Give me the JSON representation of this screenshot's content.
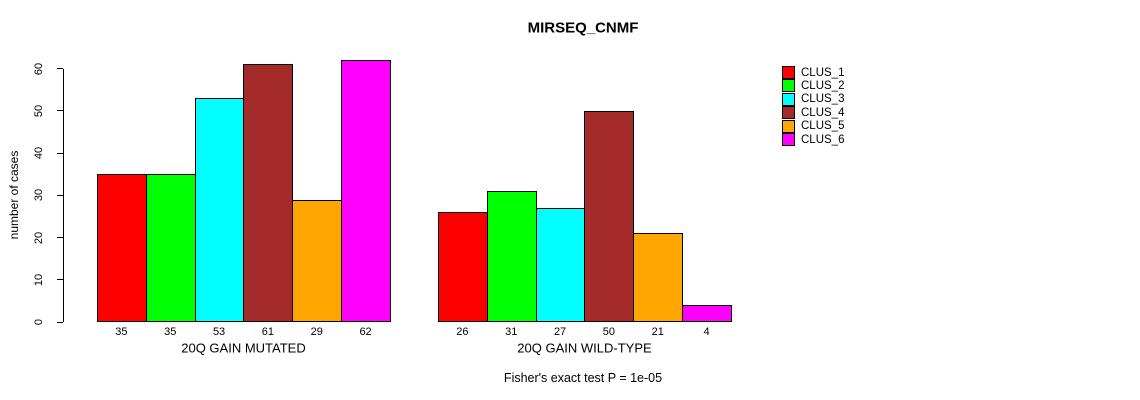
{
  "chart_data": {
    "type": "bar",
    "title": "MIRSEQ_CNMF",
    "ylabel": "number of cases",
    "xlabel": "",
    "ylim": [
      0,
      62
    ],
    "yticks": [
      0,
      10,
      20,
      30,
      40,
      50,
      60
    ],
    "grid": false,
    "legend_position": "right",
    "categories": [
      "20Q GAIN MUTATED",
      "20Q GAIN WILD-TYPE"
    ],
    "series": [
      {
        "name": "CLUS_1",
        "color": "#FF0000",
        "values": [
          35,
          26
        ]
      },
      {
        "name": "CLUS_2",
        "color": "#00FF00",
        "values": [
          35,
          31
        ]
      },
      {
        "name": "CLUS_3",
        "color": "#00FFFF",
        "values": [
          53,
          27
        ]
      },
      {
        "name": "CLUS_4",
        "color": "#A52A2A",
        "values": [
          61,
          50
        ]
      },
      {
        "name": "CLUS_5",
        "color": "#FFA500",
        "values": [
          29,
          21
        ]
      },
      {
        "name": "CLUS_6",
        "color": "#FF00FF",
        "values": [
          62,
          4
        ]
      }
    ],
    "bar_value_labels": [
      [
        35,
        35,
        53,
        61,
        29,
        62
      ],
      [
        26,
        31,
        27,
        50,
        21,
        4
      ]
    ],
    "annotation": "Fisher's exact test P = 1e-05"
  }
}
